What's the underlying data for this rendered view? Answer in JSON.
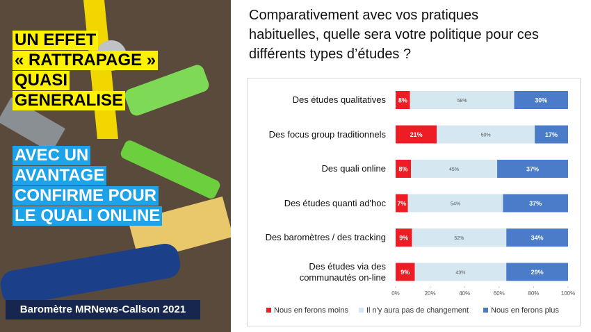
{
  "slide": {
    "headline": [
      "UN EFFET",
      "« RATTRAPAGE »",
      "QUASI",
      "GENERALISE"
    ],
    "subheadline": [
      "AVEC UN",
      "AVANTAGE",
      "CONFIRME POUR",
      "LE QUALI ONLINE"
    ],
    "footer": "Baromètre MRNews-Callson 2021"
  },
  "chart_data": {
    "type": "bar",
    "orientation": "horizontal",
    "stacked": "percent",
    "title": "Comparativement avec vos pratiques habituelles, quelle sera votre politique pour ces différents types d’études ?",
    "categories": [
      "Des études qualitatives",
      "Des focus group traditionnels",
      "Des quali online",
      "Des études quanti ad'hoc",
      "Des baromètres / des tracking",
      "Des études via des\ncommunautés on-line"
    ],
    "series": [
      {
        "name": "Nous en ferons moins",
        "color": "#ee1c25",
        "values": [
          8,
          21,
          8,
          7,
          9,
          9
        ],
        "value_labels": [
          "8%",
          "21%",
          "8%",
          "7%",
          "9%",
          "9%"
        ]
      },
      {
        "name": "Il n'y aura pas de changement",
        "color": "#d5e8f2",
        "values": [
          58,
          50,
          45,
          54,
          52,
          43
        ],
        "value_labels": [
          "58%",
          "50%",
          "45%",
          "54%",
          "52%",
          "43%"
        ]
      },
      {
        "name": "Nous en ferons plus",
        "color": "#4a7cc9",
        "values": [
          30,
          17,
          37,
          37,
          34,
          29
        ],
        "value_labels": [
          "30%",
          "17%",
          "37%",
          "37%",
          "34%",
          "29%"
        ]
      }
    ],
    "xlim": [
      0,
      100
    ],
    "xticks": [
      {
        "value": 0,
        "label": "0%"
      },
      {
        "value": 20,
        "label": "20%"
      },
      {
        "value": 40,
        "label": "40%"
      },
      {
        "value": 60,
        "label": "60%"
      },
      {
        "value": 80,
        "label": "80%"
      },
      {
        "value": 100,
        "label": "100%"
      }
    ],
    "legend": "bottom"
  }
}
